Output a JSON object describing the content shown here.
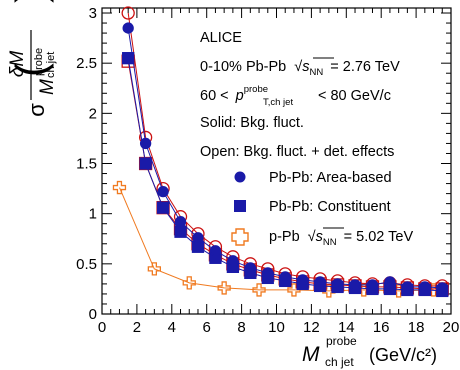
{
  "chart_data": {
    "type": "scatter",
    "xlim": [
      0,
      20
    ],
    "ylim": [
      0,
      3.05
    ],
    "x_ticks": [
      0,
      2,
      4,
      6,
      8,
      10,
      12,
      14,
      16,
      18,
      20
    ],
    "y_ticks": [
      0,
      0.5,
      1,
      1.5,
      2,
      2.5,
      3
    ],
    "x_tick_labels": [
      "0",
      "2",
      "4",
      "6",
      "8",
      "10",
      "12",
      "14",
      "16",
      "18",
      "20"
    ],
    "y_tick_labels": [
      "0",
      "0.5",
      "1",
      "1.5",
      "2",
      "2.5",
      "3"
    ],
    "xlabel": {
      "main": "M",
      "sup": "probe",
      "sub": "ch jet",
      "unit": "(GeV/c²)"
    },
    "ylabel": {
      "sigma": "σ",
      "num_main": "δM",
      "den_main": "M",
      "den_sup": "probe",
      "den_sub": "ch jet"
    },
    "annotations": {
      "experiment": "ALICE",
      "collision": "0-10% Pb-Pb √s_NN = 2.76 TeV",
      "collision_prefix": "0-10% Pb-Pb",
      "collision_root_var": "s",
      "collision_root_sub": "NN",
      "collision_energy": "= 2.76 TeV",
      "pt_lo": "60 <",
      "pt_var": "p",
      "pt_sup": "probe",
      "pt_sub": "T,ch jet",
      "pt_hi": "< 80 GeV/c",
      "solid_note": "Solid: Bkg. fluct.",
      "open_note": "Open: Bkg. fluct. + det. effects"
    },
    "legend": {
      "area": "Pb-Pb: Area-based",
      "constituent": "Pb-Pb: Constituent",
      "ppb_prefix": "p-Pb",
      "ppb_root_var": "s",
      "ppb_root_sub": "NN",
      "ppb_energy": "= 5.02 TeV"
    },
    "colors": {
      "pbpb_area": "#1a1aa8",
      "pbpb_area_open": "#cc1111",
      "pbpb_constituent": "#1a1aa8",
      "pbpb_constituent_open": "#cc1111",
      "ppb": "#f07a20"
    },
    "series": [
      {
        "name": "Pb-Pb: Area-based",
        "style": "filled-circle",
        "x": [
          1.5,
          2.5,
          3.5,
          4.5,
          5.5,
          6.5,
          7.5,
          8.5,
          9.5,
          10.5,
          11.5,
          12.5,
          13.5,
          14.5,
          15.5,
          16.5,
          17.5,
          18.5,
          19.5
        ],
        "y": [
          2.85,
          1.7,
          1.22,
          0.92,
          0.76,
          0.63,
          0.53,
          0.46,
          0.41,
          0.37,
          0.34,
          0.32,
          0.3,
          0.29,
          0.29,
          0.32,
          0.27,
          0.27,
          0.26
        ]
      },
      {
        "name": "Pb-Pb: Area-based (Bkg. fluct. + det. effects)",
        "style": "open-circle",
        "x": [
          1.5,
          2.5,
          3.5,
          4.5,
          5.5,
          6.5,
          7.5,
          8.5,
          9.5,
          10.5,
          11.5,
          12.5,
          13.5,
          14.5,
          15.5,
          16.5,
          17.5,
          18.5,
          19.5
        ],
        "y": [
          3.0,
          1.76,
          1.25,
          0.97,
          0.8,
          0.67,
          0.57,
          0.5,
          0.45,
          0.4,
          0.37,
          0.35,
          0.33,
          0.31,
          0.3,
          0.31,
          0.29,
          0.28,
          0.28
        ]
      },
      {
        "name": "Pb-Pb: Constituent",
        "style": "filled-square",
        "x": [
          1.5,
          2.5,
          3.5,
          4.5,
          5.5,
          6.5,
          7.5,
          8.5,
          9.5,
          10.5,
          11.5,
          12.5,
          13.5,
          14.5,
          15.5,
          16.5,
          17.5,
          18.5,
          19.5
        ],
        "y": [
          2.55,
          1.5,
          1.06,
          0.82,
          0.67,
          0.56,
          0.47,
          0.41,
          0.36,
          0.33,
          0.3,
          0.28,
          0.27,
          0.26,
          0.25,
          0.25,
          0.24,
          0.24,
          0.23
        ]
      },
      {
        "name": "Pb-Pb: Constituent (Bkg. fluct. + det. effects)",
        "style": "open-square",
        "x": [
          1.5,
          2.5,
          3.5,
          4.5,
          5.5,
          6.5,
          7.5,
          8.5,
          9.5,
          10.5,
          11.5,
          12.5,
          13.5,
          14.5,
          15.5,
          16.5,
          17.5,
          18.5,
          19.5
        ],
        "y": [
          2.52,
          1.5,
          1.06,
          0.85,
          0.7,
          0.59,
          0.5,
          0.44,
          0.39,
          0.35,
          0.32,
          0.3,
          0.29,
          0.28,
          0.27,
          0.27,
          0.26,
          0.25,
          0.25
        ]
      },
      {
        "name": "p-Pb √s_NN = 5.02 TeV",
        "style": "open-cross",
        "x": [
          1.0,
          3.0,
          5.0,
          7.0,
          9.0,
          11.0,
          13.0,
          15.0,
          17.0,
          19.0
        ],
        "y": [
          1.26,
          0.45,
          0.31,
          0.26,
          0.24,
          0.24,
          0.23,
          0.24,
          0.23,
          0.24
        ]
      }
    ]
  }
}
